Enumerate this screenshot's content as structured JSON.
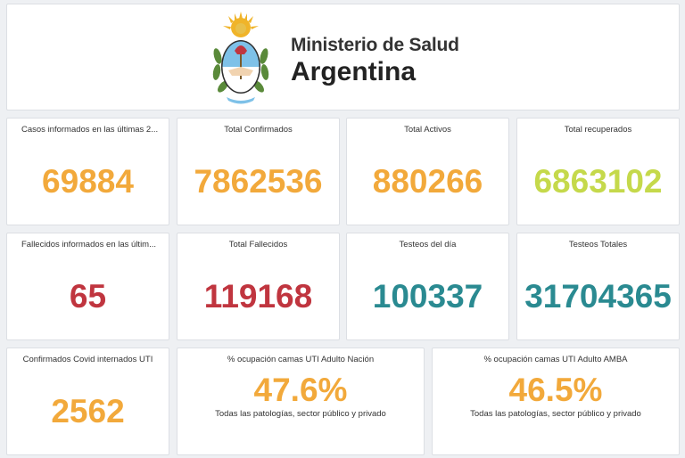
{
  "header": {
    "ministry": "Ministerio de Salud",
    "country": "Argentina"
  },
  "colors": {
    "orange": "#f2a93b",
    "lime": "#c5d94b",
    "red": "#c0353f",
    "teal": "#2a8a91"
  },
  "row1": [
    {
      "label": "Casos informados en las últimas 2...",
      "value": "69884"
    },
    {
      "label": "Total Confirmados",
      "value": "7862536"
    },
    {
      "label": "Total Activos",
      "value": "880266"
    },
    {
      "label": "Total recuperados",
      "value": "6863102"
    }
  ],
  "row2": [
    {
      "label": "Fallecidos informados en las últim...",
      "value": "65"
    },
    {
      "label": "Total Fallecidos",
      "value": "119168"
    },
    {
      "label": "Testeos del día",
      "value": "100337"
    },
    {
      "label": "Testeos Totales",
      "value": "31704365"
    }
  ],
  "row3": [
    {
      "label": "Confirmados Covid internados UTI",
      "value": "2562"
    },
    {
      "label": "% ocupación camas UTI Adulto Nación",
      "value": "47.6%",
      "sub": "Todas las patologías, sector público y privado"
    },
    {
      "label": "% ocupación camas UTI Adulto AMBA",
      "value": "46.5%",
      "sub": "Todas las patologías, sector público y privado"
    }
  ]
}
